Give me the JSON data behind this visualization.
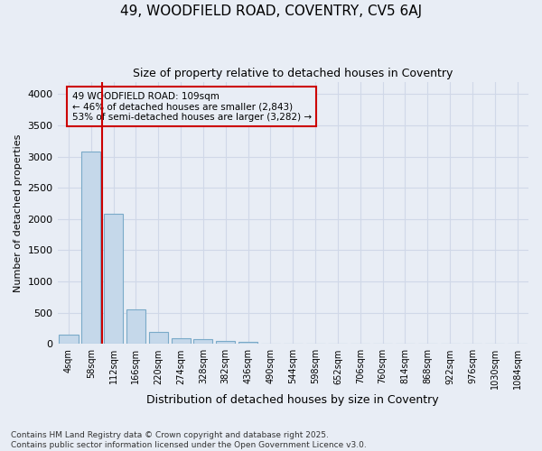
{
  "title_line1": "49, WOODFIELD ROAD, COVENTRY, CV5 6AJ",
  "title_line2": "Size of property relative to detached houses in Coventry",
  "xlabel": "Distribution of detached houses by size in Coventry",
  "ylabel": "Number of detached properties",
  "footnote_line1": "Contains HM Land Registry data © Crown copyright and database right 2025.",
  "footnote_line2": "Contains public sector information licensed under the Open Government Licence v3.0.",
  "bar_labels": [
    "4sqm",
    "58sqm",
    "112sqm",
    "166sqm",
    "220sqm",
    "274sqm",
    "328sqm",
    "382sqm",
    "436sqm",
    "490sqm",
    "544sqm",
    "598sqm",
    "652sqm",
    "706sqm",
    "760sqm",
    "814sqm",
    "868sqm",
    "922sqm",
    "976sqm",
    "1030sqm",
    "1084sqm"
  ],
  "bar_values": [
    150,
    3080,
    2080,
    560,
    190,
    85,
    70,
    50,
    30,
    0,
    0,
    0,
    0,
    0,
    0,
    0,
    0,
    0,
    0,
    0,
    0
  ],
  "bar_color": "#c5d8ea",
  "bar_edge_color": "#7aaac8",
  "grid_color": "#d0d8e8",
  "background_color": "#e8edf5",
  "vline_x": 1.5,
  "vline_color": "#cc0000",
  "annotation_text_line1": "49 WOODFIELD ROAD: 109sqm",
  "annotation_text_line2": "← 46% of detached houses are smaller (2,843)",
  "annotation_text_line3": "53% of semi-detached houses are larger (3,282) →",
  "annotation_box_color": "#cc0000",
  "ylim": [
    0,
    4200
  ],
  "yticks": [
    0,
    500,
    1000,
    1500,
    2000,
    2500,
    3000,
    3500,
    4000
  ]
}
